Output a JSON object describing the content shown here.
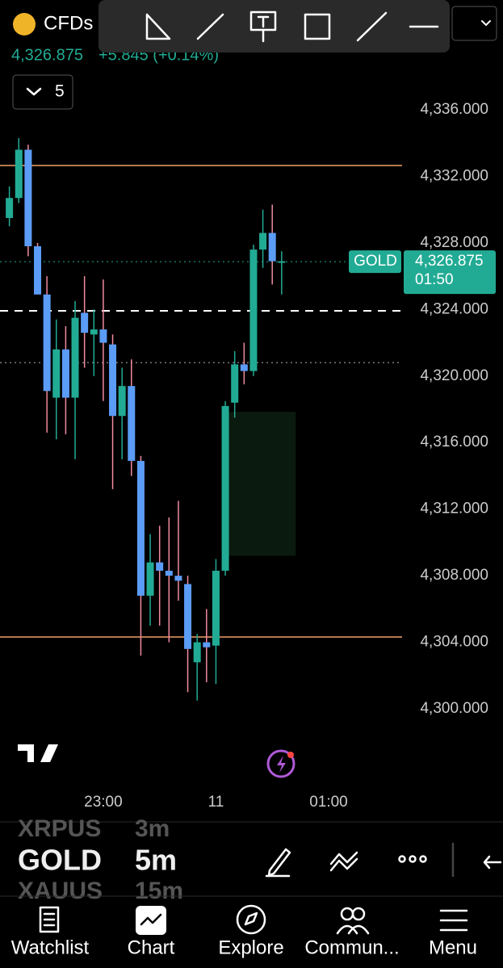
{
  "header": {
    "symbol": "CFDs",
    "price": "4,326.875",
    "change": "+5.845 (+0.14%)",
    "interval_count": "5"
  },
  "chart_data": {
    "type": "candlestick",
    "x": [
      0,
      1,
      2,
      3,
      4,
      5,
      6,
      7,
      8,
      9,
      10,
      11,
      12,
      13,
      14,
      15,
      16,
      17,
      18,
      19,
      20,
      21,
      22,
      23,
      24,
      25,
      26,
      27,
      28,
      29
    ],
    "open": [
      4329.5,
      4330.7,
      4333.6,
      4327.8,
      4324.9,
      4318.7,
      4321.6,
      4318.7,
      4323.8,
      4322.5,
      4322.8,
      4321.9,
      4317.6,
      4319.4,
      4314.9,
      4306.8,
      4308.8,
      4308.3,
      4308.0,
      4307.5,
      4302.8,
      4304.0,
      4303.8,
      4308.3,
      4318.4,
      4320.7,
      4320.3,
      4327.6,
      4328.6,
      4326.9
    ],
    "high": [
      4331.4,
      4334.3,
      4333.9,
      4328.0,
      4326.0,
      4323.4,
      4323.0,
      4324.5,
      4326.0,
      4324.0,
      4325.8,
      4322.5,
      4320.5,
      4321.0,
      4315.2,
      4310.5,
      4311.0,
      4311.5,
      4312.5,
      4308.0,
      4304.5,
      4306.0,
      4309.0,
      4318.5,
      4321.5,
      4322.0,
      4327.9,
      4330.0,
      4330.3,
      4327.5
    ],
    "low": [
      4329.0,
      4330.4,
      4327.2,
      4325.0,
      4316.6,
      4316.2,
      4316.5,
      4315.0,
      4320.5,
      4320.0,
      4318.5,
      4313.2,
      4315.0,
      4314.0,
      4303.2,
      4305.0,
      4305.0,
      4304.0,
      4306.5,
      4301.0,
      4300.5,
      4301.6,
      4301.5,
      4308.0,
      4317.5,
      4319.5,
      4320.0,
      4326.5,
      4325.5,
      4324.9
    ],
    "close": [
      4330.7,
      4333.6,
      4327.8,
      4324.9,
      4319.1,
      4321.6,
      4318.7,
      4323.5,
      4322.6,
      4322.8,
      4322.0,
      4317.6,
      4319.4,
      4314.9,
      4306.8,
      4308.8,
      4308.3,
      4308.0,
      4307.7,
      4303.6,
      4304.0,
      4303.7,
      4308.3,
      4318.2,
      4320.7,
      4320.3,
      4327.6,
      4328.6,
      4326.9,
      4326.9
    ],
    "up_color": "#22ab94",
    "down_color": "#5b9cf6",
    "wick_down_color": "#f28b9e",
    "xlim": [
      -1,
      42
    ],
    "xticks": [
      {
        "value": 10,
        "label": "23:00"
      },
      {
        "value": 22,
        "label": "11"
      },
      {
        "value": 34,
        "label": "01:00"
      }
    ],
    "ylim": [
      4300,
      4336
    ],
    "yticks": [
      {
        "value": 4300,
        "label": "4,300.000"
      },
      {
        "value": 4304,
        "label": "4,304.000"
      },
      {
        "value": 4308,
        "label": "4,308.000"
      },
      {
        "value": 4312,
        "label": "4,312.000"
      },
      {
        "value": 4316,
        "label": "4,316.000"
      },
      {
        "value": 4320,
        "label": "4,320.000"
      },
      {
        "value": 4324,
        "label": "4,324.000"
      },
      {
        "value": 4328,
        "label": "4,328.000"
      },
      {
        "value": 4332,
        "label": "4,332.000"
      },
      {
        "value": 4336,
        "label": "4,336.000"
      }
    ],
    "levels": [
      {
        "value": 4332.65,
        "color": "#f0a068",
        "style": "solid"
      },
      {
        "value": 4304.32,
        "color": "#f0a068",
        "style": "solid"
      },
      {
        "value": 4323.92,
        "color": "#ffffff",
        "style": "dashed"
      },
      {
        "value": 4320.8,
        "color": "#777777",
        "style": "dotted"
      }
    ],
    "zone": {
      "x": [
        23.2,
        30.5
      ],
      "y": [
        4309.2,
        4317.85
      ],
      "color": "#0b1a0f"
    },
    "last_price": {
      "value": 4326.875,
      "label": "4,326.875",
      "symbol": "GOLD",
      "countdown": "01:50",
      "color": "#22ab94"
    }
  },
  "symbol_picker": [
    {
      "symbol": "XRPUS",
      "interval": "3m"
    },
    {
      "symbol": "GOLD",
      "interval": "5m"
    },
    {
      "symbol": "XAUUS",
      "interval": "15m"
    }
  ],
  "nav": [
    "Watchlist",
    "Chart",
    "Explore",
    "Commun...",
    "Menu"
  ]
}
